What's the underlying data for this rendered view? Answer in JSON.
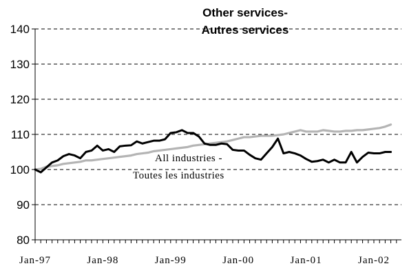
{
  "chart_data": {
    "type": "line",
    "title": "Other services-",
    "subtitle": "Autres services",
    "xlabel": "",
    "ylabel": "",
    "ylim": [
      80,
      140
    ],
    "yticks": [
      80,
      90,
      100,
      110,
      120,
      130,
      140
    ],
    "xtick_labels": [
      "Jan-97",
      "Jan-98",
      "Jan-99",
      "Jan-00",
      "Jan-01",
      "Jan-02"
    ],
    "grid": "dashed horizontal",
    "annotation_line1": "All industries -",
    "annotation_line2": "Toutes les industries",
    "x_months": [
      "Jan-97",
      "Feb-97",
      "Mar-97",
      "Apr-97",
      "May-97",
      "Jun-97",
      "Jul-97",
      "Aug-97",
      "Sep-97",
      "Oct-97",
      "Nov-97",
      "Dec-97",
      "Jan-98",
      "Feb-98",
      "Mar-98",
      "Apr-98",
      "May-98",
      "Jun-98",
      "Jul-98",
      "Aug-98",
      "Sep-98",
      "Oct-98",
      "Nov-98",
      "Dec-98",
      "Jan-99",
      "Feb-99",
      "Mar-99",
      "Apr-99",
      "May-99",
      "Jun-99",
      "Jul-99",
      "Aug-99",
      "Sep-99",
      "Oct-99",
      "Nov-99",
      "Dec-99",
      "Jan-00",
      "Feb-00",
      "Mar-00",
      "Apr-00",
      "May-00",
      "Jun-00",
      "Jul-00",
      "Aug-00",
      "Sep-00",
      "Oct-00",
      "Nov-00",
      "Dec-00",
      "Jan-01",
      "Feb-01",
      "Mar-01",
      "Apr-01",
      "May-01",
      "Jun-01",
      "Jul-01",
      "Aug-01",
      "Sep-01",
      "Oct-01",
      "Nov-01",
      "Dec-01",
      "Jan-02",
      "Feb-02",
      "Mar-02",
      "Apr-02"
    ],
    "series": [
      {
        "color": "#000000",
        "values": [
          100.0,
          99.2,
          100.6,
          102.0,
          102.6,
          103.8,
          104.4,
          104.0,
          103.2,
          105.0,
          105.4,
          106.8,
          105.4,
          105.8,
          105.0,
          106.6,
          106.8,
          106.9,
          108.0,
          107.4,
          107.8,
          108.2,
          108.2,
          108.6,
          110.4,
          110.6,
          111.2,
          110.4,
          110.4,
          109.4,
          107.4,
          107.0,
          107.0,
          107.4,
          107.2,
          105.6,
          105.4,
          105.4,
          104.2,
          103.2,
          102.8,
          104.6,
          106.4,
          108.8,
          104.6,
          105.0,
          104.6,
          104.0,
          103.0,
          102.2,
          102.4,
          102.8,
          102.0,
          102.8,
          102.0,
          102.0,
          105.0,
          102.0,
          103.6,
          104.8,
          104.6,
          104.6,
          105.0,
          105.0
        ]
      },
      {
        "color": "#b4b4b4",
        "values": [
          100.0,
          100.2,
          100.8,
          101.0,
          101.2,
          101.6,
          101.8,
          102.0,
          102.2,
          102.6,
          102.6,
          102.8,
          103.0,
          103.2,
          103.4,
          103.6,
          103.8,
          104.0,
          104.4,
          104.6,
          104.8,
          105.2,
          105.4,
          105.6,
          105.8,
          106.0,
          106.2,
          106.4,
          106.8,
          107.0,
          107.2,
          107.4,
          107.6,
          107.8,
          108.0,
          108.4,
          108.8,
          109.2,
          109.2,
          109.4,
          109.6,
          109.6,
          109.6,
          109.8,
          110.0,
          110.4,
          110.8,
          111.2,
          110.8,
          110.8,
          110.8,
          111.2,
          111.0,
          110.8,
          110.8,
          111.0,
          111.0,
          111.2,
          111.2,
          111.4,
          111.6,
          111.8,
          112.2,
          112.8
        ]
      }
    ]
  }
}
